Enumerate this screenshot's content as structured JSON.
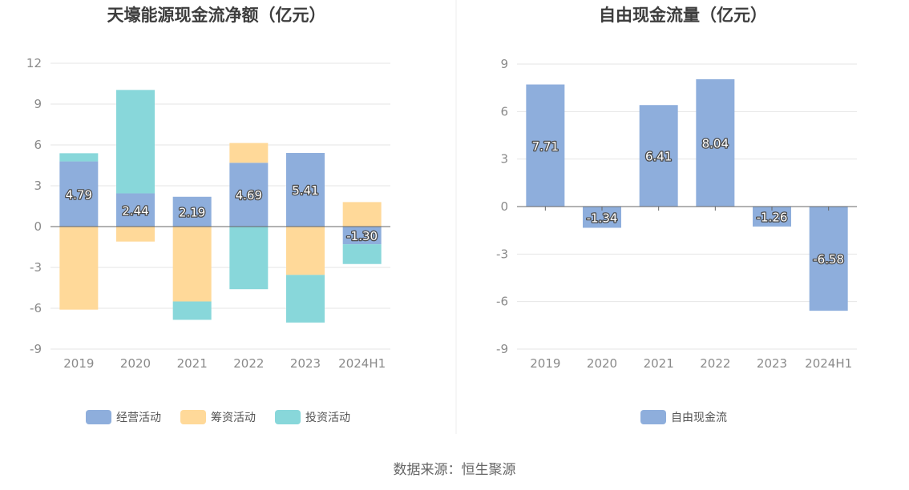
{
  "source_label": "数据来源：恒生聚源",
  "chart_data": [
    {
      "type": "bar",
      "stacked": true,
      "title": "天壕能源现金流净额（亿元）",
      "categories": [
        "2019",
        "2020",
        "2021",
        "2022",
        "2023",
        "2024H1"
      ],
      "ylim": [
        -9,
        12
      ],
      "yticks": [
        12,
        9,
        6,
        3,
        0,
        -3,
        -6,
        -9
      ],
      "grid": true,
      "legend_position": "bottom",
      "series": [
        {
          "name": "经营活动",
          "color": "#8eaedc",
          "values": [
            4.79,
            2.44,
            2.19,
            4.69,
            5.41,
            -1.3
          ],
          "labels": [
            "4.79",
            "2.44",
            "2.19",
            "4.69",
            "5.41",
            "-1.30"
          ]
        },
        {
          "name": "筹资活动",
          "color": "#ffd999",
          "values": [
            -6.1,
            -1.1,
            -5.5,
            1.45,
            -3.55,
            1.8
          ]
        },
        {
          "name": "投资活动",
          "color": "#88d7da",
          "values": [
            0.6,
            7.6,
            -1.35,
            -4.6,
            -3.5,
            -1.45
          ]
        }
      ]
    },
    {
      "type": "bar",
      "stacked": false,
      "title": "自由现金流量（亿元）",
      "categories": [
        "2019",
        "2020",
        "2021",
        "2022",
        "2023",
        "2024H1"
      ],
      "ylim": [
        -9,
        9
      ],
      "yticks": [
        9,
        6,
        3,
        0,
        -3,
        -6,
        -9
      ],
      "grid": true,
      "legend_position": "bottom",
      "series": [
        {
          "name": "自由现金流",
          "color": "#8eaedc",
          "values": [
            7.71,
            -1.34,
            6.41,
            8.04,
            -1.26,
            -6.58
          ],
          "labels": [
            "7.71",
            "-1.34",
            "6.41",
            "8.04",
            "-1.26",
            "-6.58"
          ]
        }
      ]
    }
  ]
}
